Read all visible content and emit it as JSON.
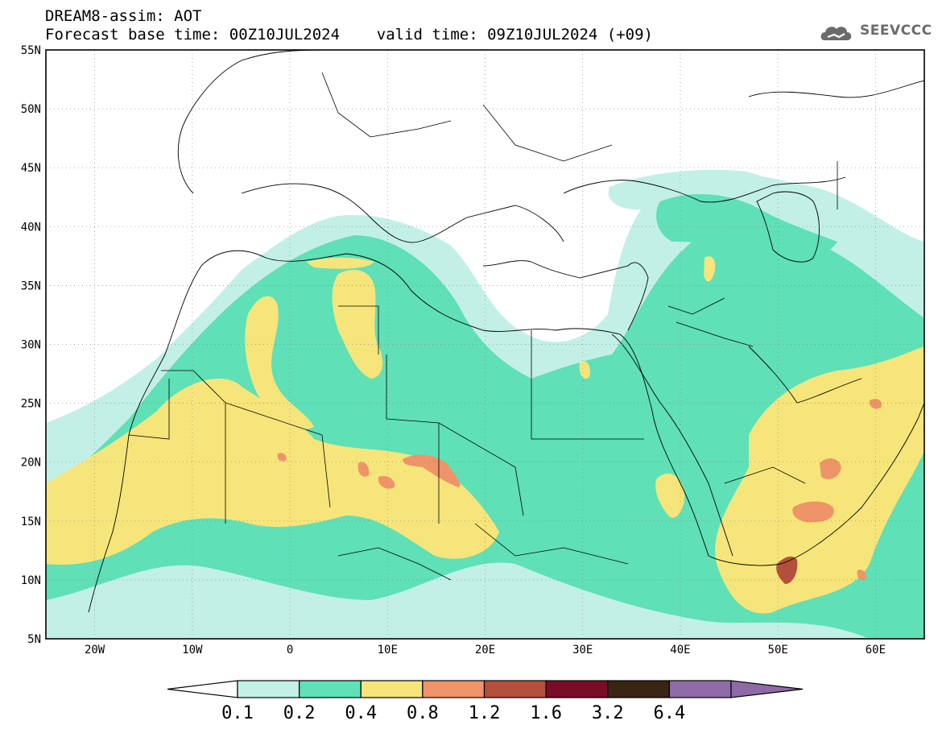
{
  "header": {
    "title_line1": "DREAM8-assim: AOT",
    "title_line2": "Forecast base time: 00Z10JUL2024    valid time: 09Z10JUL2024 (+09)"
  },
  "logo": {
    "text": "SEEVCCC",
    "icon": "cloud-icon"
  },
  "map": {
    "lon_range": [
      -25,
      65
    ],
    "lat_range": [
      5,
      55
    ],
    "lat_ticks": [
      "5N",
      "10N",
      "15N",
      "20N",
      "25N",
      "30N",
      "35N",
      "40N",
      "45N",
      "50N",
      "55N"
    ],
    "lon_ticks": [
      "20W",
      "10W",
      "0",
      "10E",
      "20E",
      "30E",
      "40E",
      "50E",
      "60E"
    ]
  },
  "colorbar": {
    "labels": [
      "0.1",
      "0.2",
      "0.4",
      "0.8",
      "1.2",
      "1.6",
      "3.2",
      "6.4"
    ],
    "colors": [
      "#ffffff",
      "#c2f0e6",
      "#5fe0b6",
      "#f6e57a",
      "#ee9468",
      "#b44f3c",
      "#7b0c28",
      "#3a2414",
      "#8e6ba6"
    ]
  }
}
